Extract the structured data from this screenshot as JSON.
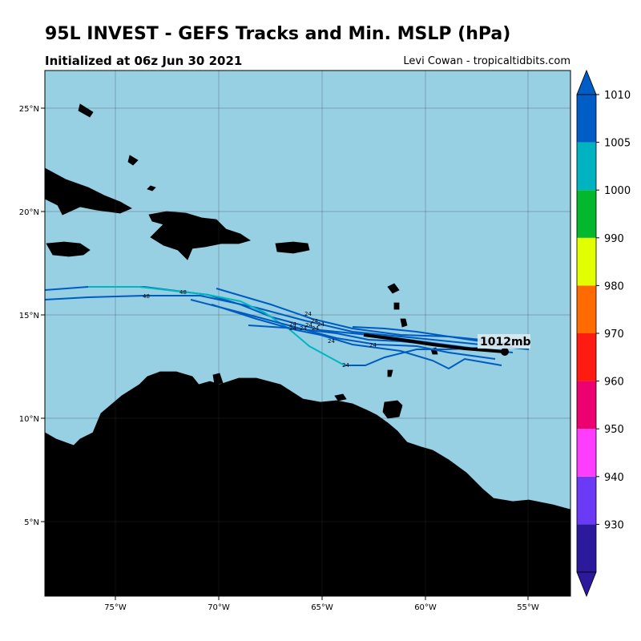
{
  "header": {
    "title": "95L INVEST - GEFS Tracks and Min. MSLP (hPa)",
    "subtitle": "Initialized at 06z Jun 30 2021",
    "credit": "Levi Cowan - tropicaltidbits.com"
  },
  "map": {
    "longitude_ticks": [
      "75°W",
      "70°W",
      "65°W",
      "60°W",
      "55°W"
    ],
    "latitude_ticks": [
      "25°N",
      "20°N",
      "15°N",
      "10°N",
      "5°N"
    ],
    "ocean_color": "#97cfe3",
    "land_color": "#c09a6a",
    "mean_track_label": "1012mb",
    "mean_track_color": "#000000",
    "track_colors": [
      "#005bc0",
      "#00b7c0"
    ],
    "hour_labels": {
      "h72": "72",
      "h48a": "48",
      "h48b": "48",
      "h24": "24"
    }
  },
  "colorbar": {
    "ticks": [
      "1010",
      "1005",
      "1000",
      "990",
      "980",
      "970",
      "960",
      "950",
      "940",
      "930"
    ],
    "bands": [
      "#2b1a9c",
      "#6a3af5",
      "#ff3dff",
      "#ed0070",
      "#ff1b0f",
      "#ff6b00",
      "#e2ff00",
      "#03b82d",
      "#00b3c0",
      "#005dc6"
    ]
  }
}
